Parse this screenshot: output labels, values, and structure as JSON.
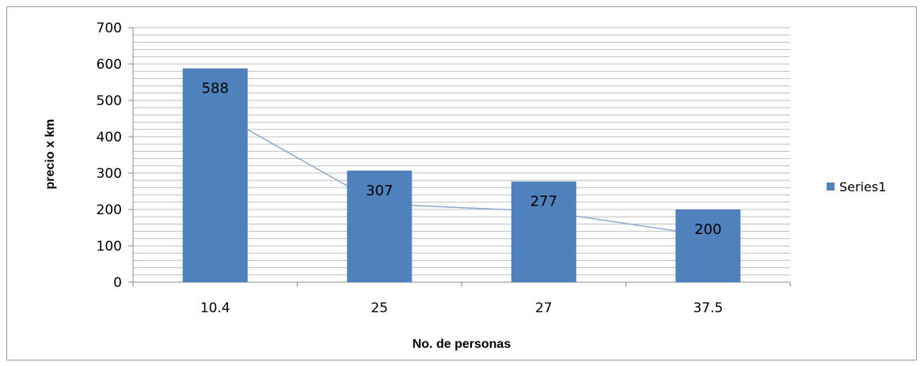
{
  "chart_data": {
    "type": "bar",
    "categories": [
      "10.4",
      "25",
      "27",
      "37.5"
    ],
    "series": [
      {
        "name": "Series1",
        "values": [
          588,
          307,
          277,
          200
        ],
        "color": "#4f81bd"
      }
    ],
    "trendline": {
      "values": [
        470,
        215,
        195,
        128
      ],
      "color": "#8aa8d0"
    },
    "xlabel": "No. de personas",
    "ylabel": "precio  x km",
    "ylim": [
      0,
      700
    ],
    "yticks": [
      0,
      100,
      200,
      300,
      400,
      500,
      600,
      700
    ],
    "minor_grid_step": 20,
    "grid": true,
    "legend": "right",
    "colors": {
      "bar": "#4f81bd",
      "grid": "#bdbdbd",
      "axis": "#888888"
    }
  }
}
